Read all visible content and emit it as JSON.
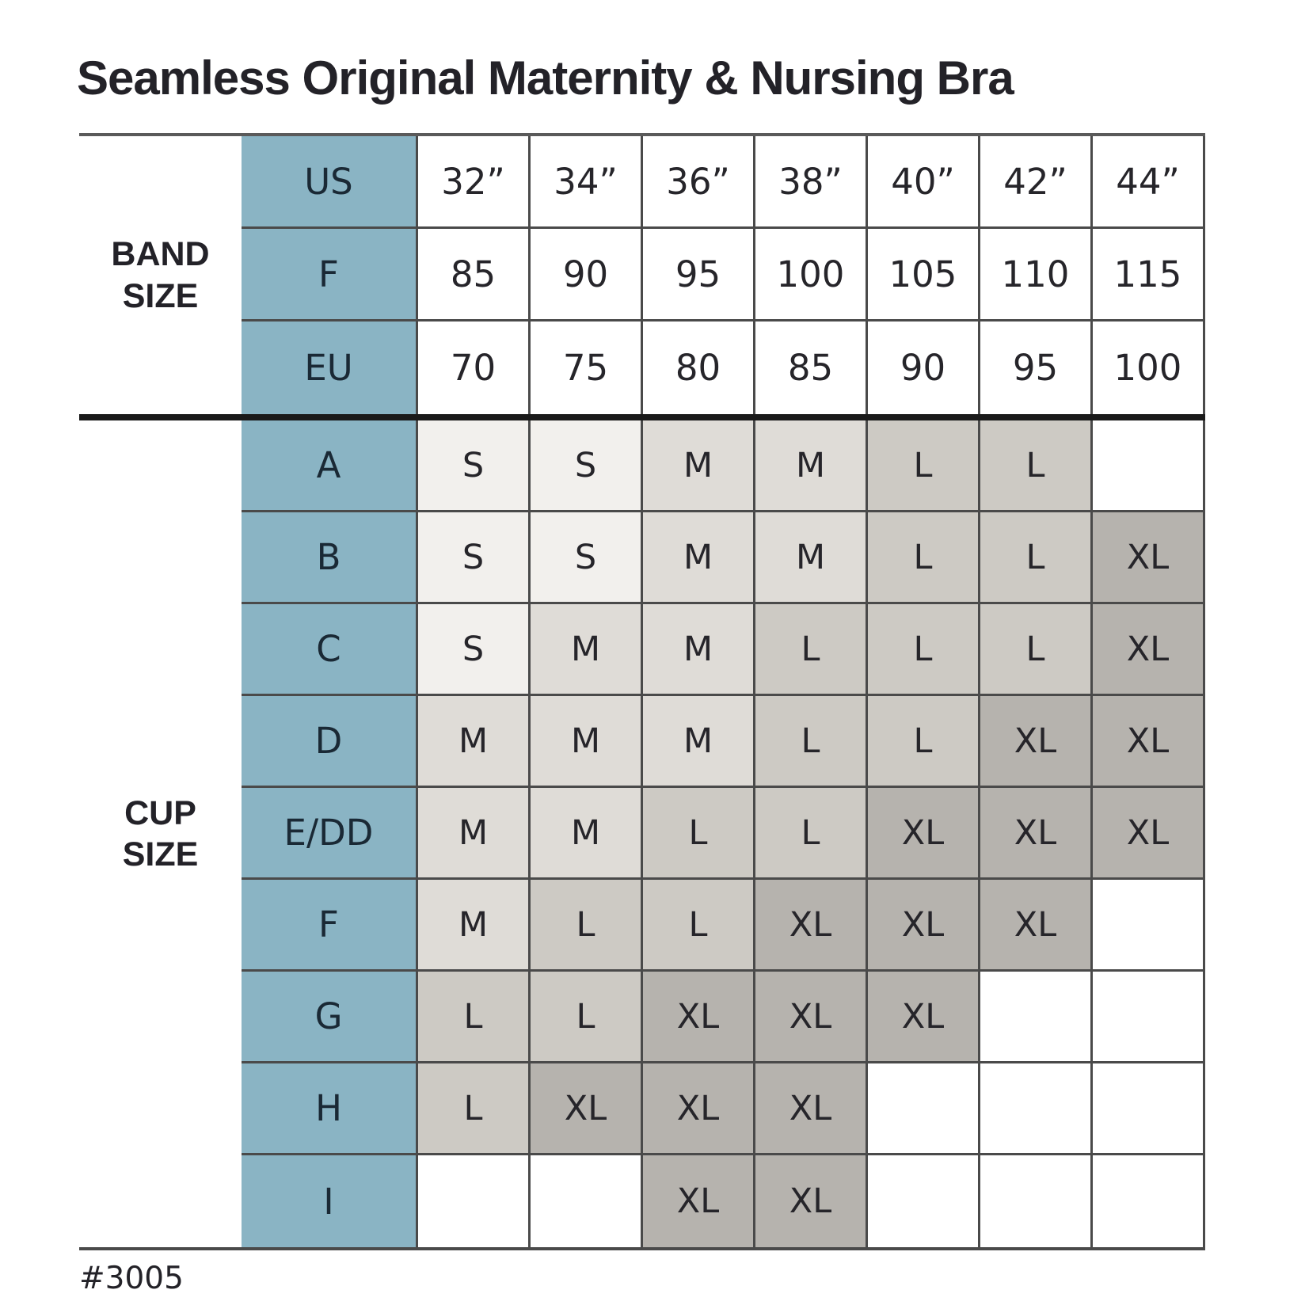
{
  "chart_data": {
    "type": "table",
    "title": "Seamless Original Maternity & Nursing Bra",
    "footnote": "#3005",
    "band_size": {
      "group_label": "BAND SIZE",
      "rows": [
        {
          "label": "US",
          "values": [
            "32”",
            "34”",
            "36”",
            "38”",
            "40”",
            "42”",
            "44”"
          ]
        },
        {
          "label": "F",
          "values": [
            "85",
            "90",
            "95",
            "100",
            "105",
            "110",
            "115"
          ]
        },
        {
          "label": "EU",
          "values": [
            "70",
            "75",
            "80",
            "85",
            "90",
            "95",
            "100"
          ]
        }
      ]
    },
    "cup_size": {
      "group_label": "CUP SIZE",
      "rows": [
        {
          "label": "A",
          "values": [
            "S",
            "S",
            "M",
            "M",
            "L",
            "L",
            ""
          ]
        },
        {
          "label": "B",
          "values": [
            "S",
            "S",
            "M",
            "M",
            "L",
            "L",
            "XL"
          ]
        },
        {
          "label": "C",
          "values": [
            "S",
            "M",
            "M",
            "L",
            "L",
            "L",
            "XL"
          ]
        },
        {
          "label": "D",
          "values": [
            "M",
            "M",
            "M",
            "L",
            "L",
            "XL",
            "XL"
          ]
        },
        {
          "label": "E/DD",
          "values": [
            "M",
            "M",
            "L",
            "L",
            "XL",
            "XL",
            "XL"
          ]
        },
        {
          "label": "F",
          "values": [
            "M",
            "L",
            "L",
            "XL",
            "XL",
            "XL",
            ""
          ]
        },
        {
          "label": "G",
          "values": [
            "L",
            "L",
            "XL",
            "XL",
            "XL",
            "",
            ""
          ]
        },
        {
          "label": "H",
          "values": [
            "L",
            "XL",
            "XL",
            "XL",
            "",
            "",
            ""
          ]
        },
        {
          "label": "I",
          "values": [
            "",
            "",
            "XL",
            "XL",
            "",
            "",
            ""
          ]
        }
      ]
    }
  },
  "colors": {
    "header_blue": "#8ab4c4",
    "size_S": "#f2f0ed",
    "size_M": "#dfdcd7",
    "size_L": "#cdcac4",
    "size_XL": "#b6b3ae",
    "grid_line": "#4a4a4a",
    "section_divider": "#1a1a1a",
    "text": "#232228"
  }
}
